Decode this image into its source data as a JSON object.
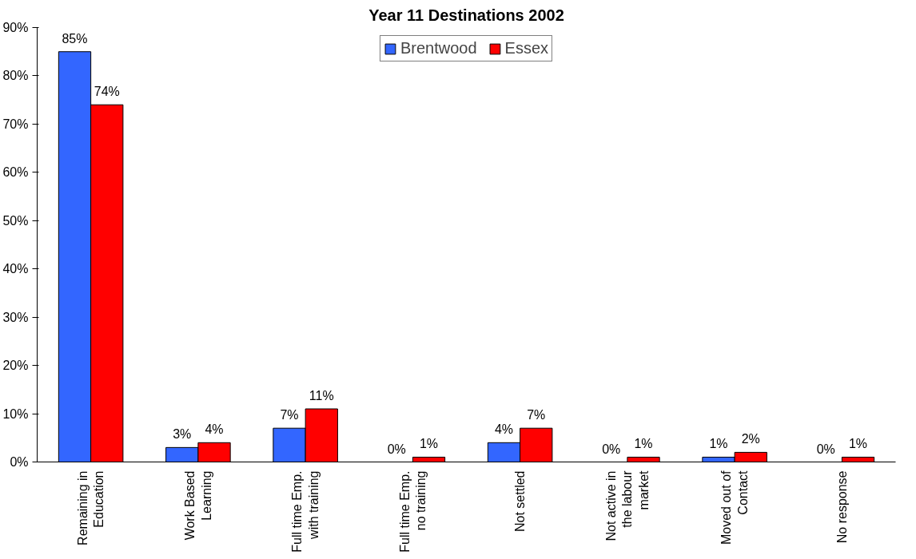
{
  "chart_data": {
    "type": "bar",
    "title": "Year 11 Destinations 2002",
    "categories": [
      "Remaining in\nEducation",
      "Work Based\nLearning",
      "Full time Emp.\nwith training",
      "Full time Emp.\nno training",
      "Not settled",
      "Not active in\nthe labour\nmarket",
      "Moved out of\nContact",
      "No response"
    ],
    "series": [
      {
        "name": "Brentwood",
        "color": "#3366ff",
        "values": [
          85,
          3,
          7,
          0,
          4,
          0,
          1,
          0
        ],
        "value_labels": [
          "85%",
          "3%",
          "7%",
          "0%",
          "4%",
          "0%",
          "1%",
          "0%"
        ]
      },
      {
        "name": "Essex",
        "color": "#ff0000",
        "values": [
          74,
          4,
          11,
          1,
          7,
          1,
          2,
          1
        ],
        "value_labels": [
          "74%",
          "4%",
          "11%",
          "1%",
          "7%",
          "1%",
          "2%",
          "1%"
        ]
      }
    ],
    "ylim": [
      0,
      90
    ],
    "yticks": [
      {
        "value": 0,
        "label": "0%"
      },
      {
        "value": 10,
        "label": "10%"
      },
      {
        "value": 20,
        "label": "20%"
      },
      {
        "value": 30,
        "label": "30%"
      },
      {
        "value": 40,
        "label": "40%"
      },
      {
        "value": 50,
        "label": "50%"
      },
      {
        "value": 60,
        "label": "60%"
      },
      {
        "value": 70,
        "label": "70%"
      },
      {
        "value": 80,
        "label": "80%"
      },
      {
        "value": 90,
        "label": "90%"
      }
    ],
    "grid": false,
    "legend": "top"
  }
}
